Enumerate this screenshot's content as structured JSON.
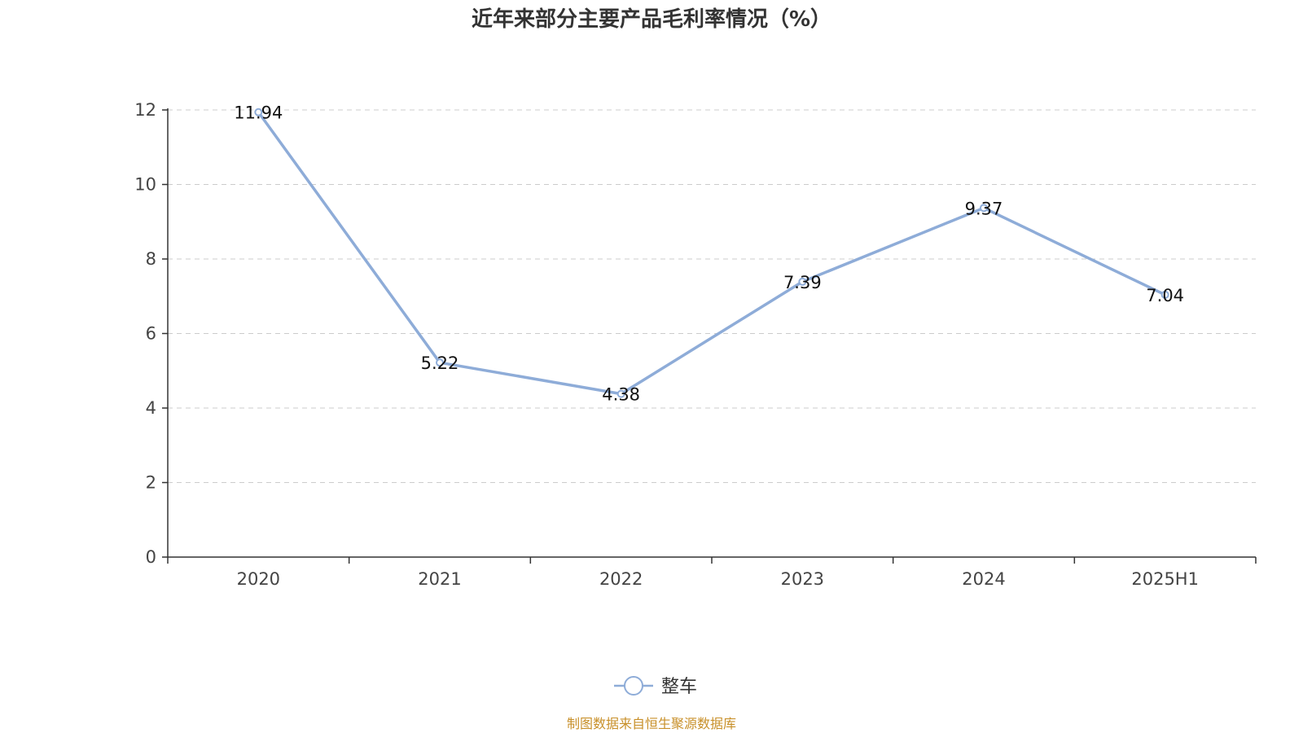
{
  "chart_data": {
    "type": "line",
    "title": "近年来部分主要产品毛利率情况（%）",
    "categories": [
      "2020",
      "2021",
      "2022",
      "2023",
      "2024",
      "2025H1"
    ],
    "series": [
      {
        "name": "整车",
        "values": [
          11.94,
          5.22,
          4.38,
          7.39,
          9.37,
          7.04
        ],
        "color": "#8eacd8"
      }
    ],
    "ylim": [
      0,
      12
    ],
    "yticks": [
      "0",
      "2",
      "4",
      "6",
      "8",
      "10",
      "12"
    ],
    "grid": true,
    "legend_position": "bottom-center"
  },
  "source_note": "制图数据来自恒生聚源数据库"
}
